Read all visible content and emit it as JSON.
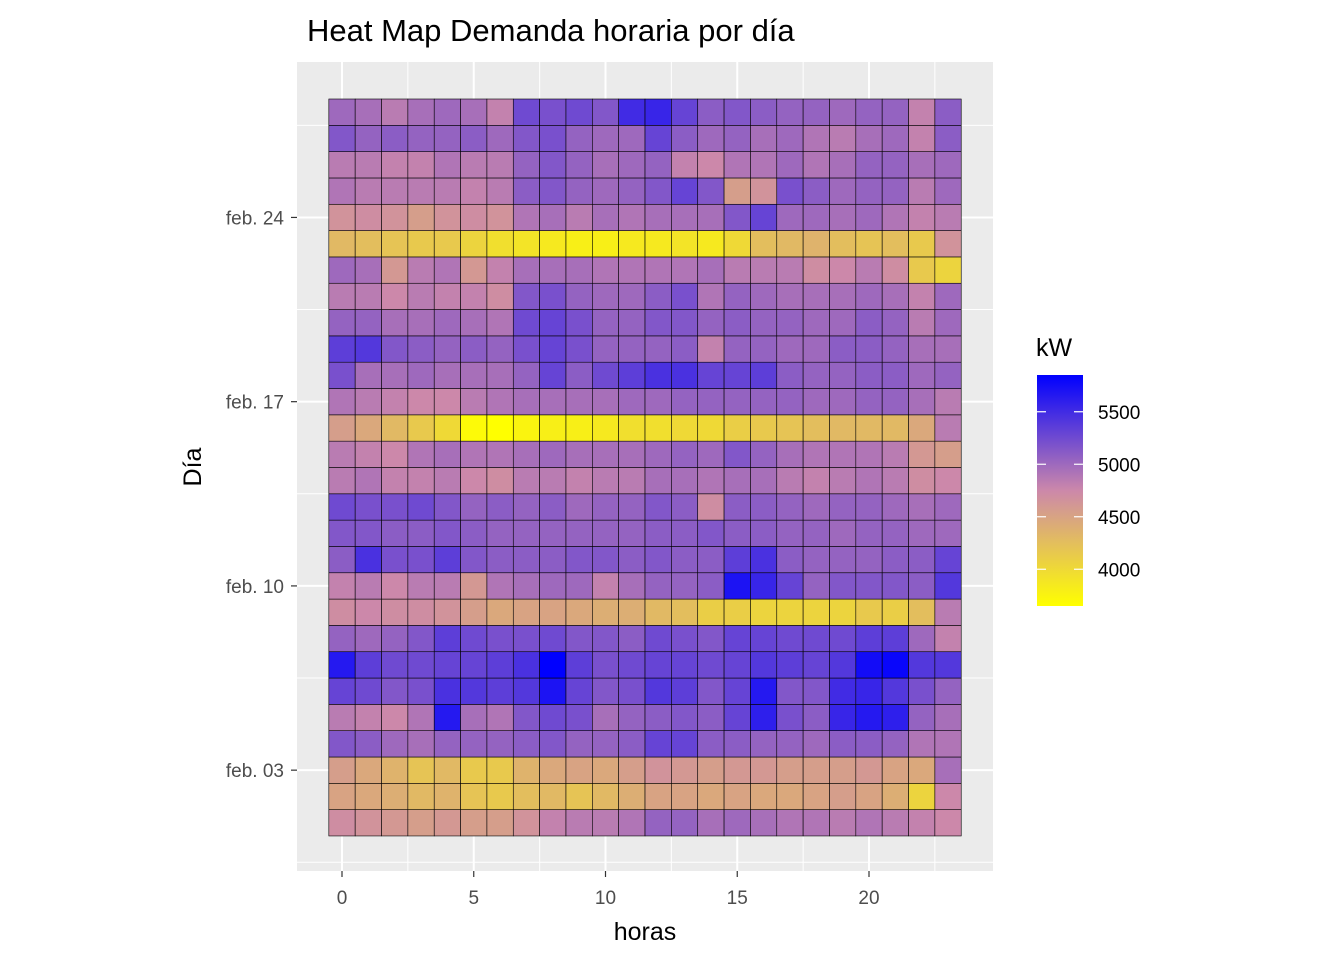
{
  "chart_data": {
    "type": "heatmap",
    "title": "Heat Map Demanda horaria por día",
    "xlabel": "horas",
    "ylabel": "Día",
    "x": [
      0,
      1,
      2,
      3,
      4,
      5,
      6,
      7,
      8,
      9,
      10,
      11,
      12,
      13,
      14,
      15,
      16,
      17,
      18,
      19,
      20,
      21,
      22,
      23
    ],
    "x_ticks": [
      0,
      5,
      10,
      15,
      20
    ],
    "x_tick_labels": [
      "0",
      "5",
      "10",
      "15",
      "20"
    ],
    "y": [
      "feb. 01",
      "feb. 02",
      "feb. 03",
      "feb. 04",
      "feb. 05",
      "feb. 06",
      "feb. 07",
      "feb. 08",
      "feb. 09",
      "feb. 10",
      "feb. 11",
      "feb. 12",
      "feb. 13",
      "feb. 14",
      "feb. 15",
      "feb. 16",
      "feb. 17",
      "feb. 18",
      "feb. 19",
      "feb. 20",
      "feb. 21",
      "feb. 22",
      "feb. 23",
      "feb. 24",
      "feb. 25",
      "feb. 26",
      "feb. 27",
      "feb. 28"
    ],
    "y_ticks": [
      "feb. 03",
      "feb. 10",
      "feb. 17",
      "feb. 24"
    ],
    "values": [
      [
        4700,
        4650,
        4600,
        4550,
        4600,
        4550,
        4550,
        4650,
        4800,
        4850,
        4850,
        4900,
        5050,
        5050,
        4950,
        5000,
        4950,
        4900,
        4900,
        4850,
        4900,
        4850,
        4800,
        4750
      ],
      [
        4500,
        4450,
        4400,
        4300,
        4350,
        4200,
        4150,
        4250,
        4300,
        4200,
        4300,
        4400,
        4500,
        4500,
        4450,
        4500,
        4450,
        4450,
        4500,
        4550,
        4500,
        4400,
        4050,
        4750
      ],
      [
        4550,
        4450,
        4350,
        4200,
        4300,
        4150,
        4150,
        4350,
        4450,
        4500,
        4450,
        4550,
        4650,
        4600,
        4550,
        4600,
        4600,
        4550,
        4550,
        4550,
        4600,
        4500,
        4450,
        4950
      ],
      [
        5150,
        5100,
        5000,
        4950,
        5050,
        5050,
        5050,
        5100,
        5150,
        5050,
        5050,
        5100,
        5300,
        5300,
        5100,
        5100,
        5050,
        5050,
        5000,
        5100,
        5100,
        5050,
        4900,
        4900
      ],
      [
        4850,
        4800,
        4750,
        4900,
        5650,
        4950,
        4900,
        5150,
        5250,
        5200,
        4950,
        5050,
        5100,
        5150,
        5100,
        5300,
        5600,
        5200,
        5100,
        5550,
        5650,
        5600,
        5050,
        4950
      ],
      [
        5300,
        5250,
        5150,
        5200,
        5450,
        5400,
        5350,
        5400,
        5700,
        5300,
        5150,
        5200,
        5400,
        5350,
        5150,
        5300,
        5650,
        5150,
        5150,
        5500,
        5550,
        5400,
        5200,
        5050
      ],
      [
        5650,
        5350,
        5250,
        5250,
        5300,
        5300,
        5350,
        5450,
        5850,
        5350,
        5200,
        5250,
        5300,
        5300,
        5250,
        5300,
        5400,
        5350,
        5300,
        5400,
        5750,
        5800,
        5400,
        5400
      ],
      [
        5050,
        5000,
        5050,
        5150,
        5350,
        5250,
        5200,
        5200,
        5250,
        5150,
        5150,
        5100,
        5250,
        5200,
        5150,
        5300,
        5300,
        5250,
        5250,
        5250,
        5350,
        5350,
        5000,
        4800
      ],
      [
        4700,
        4750,
        4700,
        4700,
        4650,
        4550,
        4450,
        4500,
        4500,
        4450,
        4400,
        4400,
        4300,
        4250,
        4100,
        4100,
        4050,
        4050,
        4050,
        4050,
        4150,
        4100,
        4250,
        4850
      ],
      [
        4800,
        4850,
        4750,
        4850,
        4850,
        4600,
        4900,
        4950,
        5000,
        5000,
        4800,
        4950,
        5050,
        5050,
        5100,
        5700,
        5550,
        5300,
        5050,
        5150,
        5150,
        5150,
        5100,
        5400
      ],
      [
        5100,
        5450,
        5200,
        5200,
        5350,
        5150,
        5100,
        5100,
        5100,
        5150,
        5150,
        5100,
        5150,
        5100,
        5100,
        5350,
        5450,
        5100,
        5050,
        5050,
        5050,
        5100,
        5100,
        5300
      ],
      [
        5150,
        5150,
        5100,
        5100,
        5150,
        5100,
        5050,
        5050,
        5050,
        5050,
        5050,
        5050,
        5100,
        5100,
        5150,
        5100,
        5100,
        5050,
        5050,
        5000,
        5050,
        5050,
        5000,
        5000
      ],
      [
        5250,
        5200,
        5200,
        5250,
        5150,
        5050,
        5100,
        5050,
        5100,
        5000,
        5050,
        5050,
        5150,
        5100,
        4700,
        5100,
        5100,
        5050,
        5000,
        5050,
        5050,
        5000,
        4950,
        5000
      ],
      [
        4850,
        4900,
        4800,
        4800,
        4850,
        4750,
        4700,
        4850,
        4850,
        4800,
        4850,
        4850,
        4950,
        4950,
        4900,
        4950,
        4950,
        4850,
        4800,
        4850,
        4900,
        4850,
        4700,
        4750
      ],
      [
        4850,
        4800,
        4750,
        4900,
        4950,
        4900,
        4900,
        4950,
        5000,
        4950,
        4950,
        4950,
        5000,
        5050,
        5000,
        5150,
        5050,
        4950,
        4900,
        4900,
        4900,
        4850,
        4600,
        4550
      ],
      [
        4550,
        4450,
        4300,
        4150,
        4000,
        3700,
        3650,
        3750,
        3800,
        3800,
        3850,
        3950,
        3950,
        4000,
        4000,
        4100,
        4150,
        4200,
        4250,
        4300,
        4300,
        4300,
        4450,
        4850
      ],
      [
        4900,
        4850,
        4800,
        4750,
        4750,
        4850,
        4900,
        4950,
        4950,
        4950,
        4950,
        5000,
        5000,
        5050,
        5050,
        5050,
        5050,
        5050,
        5000,
        5000,
        5050,
        5050,
        4950,
        4850
      ],
      [
        5200,
        4950,
        4950,
        5000,
        4950,
        4950,
        4950,
        5050,
        5300,
        5100,
        5250,
        5350,
        5450,
        5450,
        5300,
        5300,
        5350,
        5100,
        5050,
        5050,
        5100,
        5100,
        5000,
        5050
      ],
      [
        5350,
        5400,
        5150,
        5100,
        5050,
        5100,
        5050,
        5200,
        5300,
        5200,
        5050,
        5050,
        5050,
        5100,
        4800,
        5050,
        5050,
        5000,
        5000,
        5100,
        5100,
        5050,
        4950,
        4950
      ],
      [
        5050,
        5050,
        4950,
        4950,
        5000,
        4950,
        4900,
        5250,
        5300,
        5200,
        5050,
        5050,
        5150,
        5150,
        5050,
        5100,
        5050,
        5050,
        5000,
        5000,
        5100,
        5050,
        4850,
        5000
      ],
      [
        4850,
        4850,
        4750,
        4850,
        4800,
        4800,
        4700,
        5150,
        5200,
        5050,
        5000,
        5000,
        5100,
        5200,
        4900,
        5050,
        5000,
        4950,
        4950,
        4950,
        5000,
        4950,
        4800,
        5000
      ],
      [
        5000,
        4950,
        4600,
        4850,
        4900,
        4600,
        4800,
        4950,
        4950,
        4950,
        4900,
        4900,
        4900,
        4900,
        4950,
        4850,
        4850,
        4850,
        4700,
        4750,
        4850,
        4700,
        4150,
        4050
      ],
      [
        4300,
        4250,
        4200,
        4150,
        4150,
        4050,
        3950,
        3900,
        3850,
        3800,
        3800,
        3850,
        3850,
        3900,
        3850,
        4000,
        4250,
        4300,
        4350,
        4250,
        4200,
        4250,
        4150,
        4650
      ],
      [
        4650,
        4700,
        4650,
        4550,
        4650,
        4700,
        4650,
        4900,
        4950,
        4850,
        4950,
        4900,
        4950,
        4950,
        4950,
        5150,
        5300,
        5000,
        5000,
        4950,
        5000,
        4900,
        4800,
        4850
      ],
      [
        4900,
        4850,
        4850,
        4850,
        4850,
        4800,
        4850,
        5100,
        5150,
        5050,
        5000,
        5050,
        5150,
        5300,
        5150,
        4550,
        4650,
        5200,
        5100,
        5000,
        5050,
        5050,
        4850,
        5000
      ],
      [
        4850,
        4850,
        4800,
        4800,
        4900,
        4850,
        4850,
        5050,
        5150,
        5050,
        4950,
        5000,
        5050,
        4800,
        4750,
        4900,
        4900,
        5000,
        4900,
        4950,
        5050,
        5050,
        4950,
        5000
      ],
      [
        5150,
        5050,
        5100,
        5050,
        5050,
        5100,
        5000,
        5150,
        5200,
        5050,
        5000,
        5000,
        5300,
        5100,
        5000,
        5050,
        4950,
        5000,
        4900,
        4850,
        4950,
        5000,
        4800,
        5100
      ],
      [
        5000,
        4950,
        4850,
        4950,
        5000,
        4950,
        4800,
        5250,
        5200,
        5250,
        5150,
        5500,
        5550,
        5300,
        5100,
        5150,
        5100,
        5050,
        5050,
        5000,
        5050,
        5050,
        4800,
        5100
      ]
    ],
    "color_scale": {
      "low": "#FFFF00",
      "mid": "#CC88AA",
      "high": "#0000FF",
      "domain": [
        3650,
        5850
      ]
    },
    "legend": {
      "title": "kW",
      "ticks": [
        4000,
        4500,
        5000,
        5500
      ],
      "tick_labels": [
        "4000",
        "4500",
        "5000",
        "5500"
      ],
      "placement": "right"
    },
    "panel_background": "#EBEBEB",
    "grid_color": "#FFFFFF",
    "tile_border": "#000000",
    "grid": true
  }
}
